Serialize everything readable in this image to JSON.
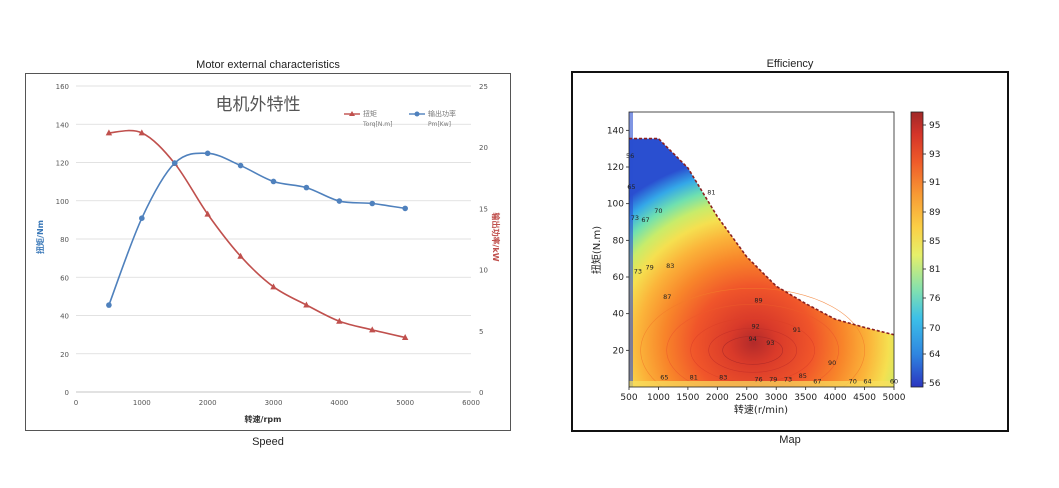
{
  "panels": {
    "left": {
      "heading": "Motor external characteristics",
      "caption": "Speed"
    },
    "right": {
      "heading": "Efficiency",
      "caption": "Map"
    }
  },
  "chart_data": [
    {
      "type": "line",
      "title": "电机外特性",
      "xlabel": "转速/rpm",
      "ylabel": "扭矩/Nm",
      "y2label": "输出功率/kW",
      "xlim": [
        0,
        6000
      ],
      "ylim": [
        0,
        160
      ],
      "y2lim": [
        0,
        25
      ],
      "xticks": [
        0,
        1000,
        2000,
        3000,
        4000,
        5000,
        6000
      ],
      "yticks": [
        0,
        20,
        40,
        60,
        80,
        100,
        120,
        140,
        160
      ],
      "y2ticks": [
        0,
        5,
        10,
        15,
        20,
        25
      ],
      "grid": true,
      "legend_position": "top-right",
      "series": [
        {
          "name": "扭矩",
          "unit": "Torq[N.m]",
          "axis": "left",
          "color": "#c0504d",
          "marker": "triangle",
          "x": [
            500,
            1000,
            1500,
            2000,
            2500,
            3000,
            3500,
            4000,
            4500,
            5000
          ],
          "y": [
            135.5,
            135.5,
            119.5,
            93,
            71,
            55,
            45.5,
            37,
            32.5,
            28.5
          ]
        },
        {
          "name": "输出功率",
          "unit": "Pm[Kw]",
          "axis": "right",
          "color": "#4f81bd",
          "marker": "circle",
          "x": [
            500,
            1000,
            1500,
            2000,
            2500,
            3000,
            3500,
            4000,
            4500,
            5000
          ],
          "y": [
            7.1,
            14.2,
            18.7,
            19.5,
            18.5,
            17.2,
            16.7,
            15.6,
            15.4,
            15.0
          ]
        }
      ]
    },
    {
      "type": "heatmap",
      "xlabel": "转速(r/min)",
      "ylabel": "扭矩(N.m)",
      "xlim": [
        500,
        5000
      ],
      "ylim": [
        0,
        150
      ],
      "xticks": [
        500,
        1000,
        1500,
        2000,
        2500,
        3000,
        3500,
        4000,
        4500,
        5000
      ],
      "yticks": [
        20,
        40,
        60,
        80,
        100,
        120,
        140
      ],
      "colorbar_ticks": [
        56,
        64,
        70,
        76,
        81,
        85,
        89,
        91,
        93,
        95
      ],
      "boundary": {
        "x": [
          500,
          1000,
          1500,
          2000,
          2500,
          3000,
          3500,
          4000,
          4500,
          5000
        ],
        "y": [
          135.5,
          135.5,
          119.5,
          93,
          71,
          55,
          45.5,
          37,
          32.5,
          28.5
        ]
      },
      "peak": {
        "x": 2600,
        "y": 20
      },
      "contour_labels": [
        {
          "text": "56",
          "x": 520,
          "y": 125
        },
        {
          "text": "65",
          "x": 540,
          "y": 108
        },
        {
          "text": "65",
          "x": 1100,
          "y": 4
        },
        {
          "text": "70",
          "x": 1000,
          "y": 95
        },
        {
          "text": "73",
          "x": 600,
          "y": 91
        },
        {
          "text": "67",
          "x": 780,
          "y": 90
        },
        {
          "text": "73",
          "x": 650,
          "y": 62
        },
        {
          "text": "79",
          "x": 850,
          "y": 64
        },
        {
          "text": "81",
          "x": 1900,
          "y": 105
        },
        {
          "text": "83",
          "x": 1200,
          "y": 65
        },
        {
          "text": "87",
          "x": 1150,
          "y": 48
        },
        {
          "text": "89",
          "x": 2700,
          "y": 46
        },
        {
          "text": "91",
          "x": 3350,
          "y": 30
        },
        {
          "text": "92",
          "x": 2650,
          "y": 32
        },
        {
          "text": "94",
          "x": 2600,
          "y": 25
        },
        {
          "text": "93",
          "x": 2900,
          "y": 23
        },
        {
          "text": "90",
          "x": 3950,
          "y": 12
        },
        {
          "text": "81",
          "x": 1600,
          "y": 4
        },
        {
          "text": "83",
          "x": 2100,
          "y": 4
        },
        {
          "text": "76",
          "x": 2700,
          "y": 3
        },
        {
          "text": "79",
          "x": 2950,
          "y": 3
        },
        {
          "text": "73",
          "x": 3200,
          "y": 3
        },
        {
          "text": "85",
          "x": 3450,
          "y": 5
        },
        {
          "text": "67",
          "x": 3700,
          "y": 2
        },
        {
          "text": "70",
          "x": 4300,
          "y": 2
        },
        {
          "text": "64",
          "x": 4550,
          "y": 2
        },
        {
          "text": "60",
          "x": 5000,
          "y": 2
        }
      ]
    }
  ]
}
